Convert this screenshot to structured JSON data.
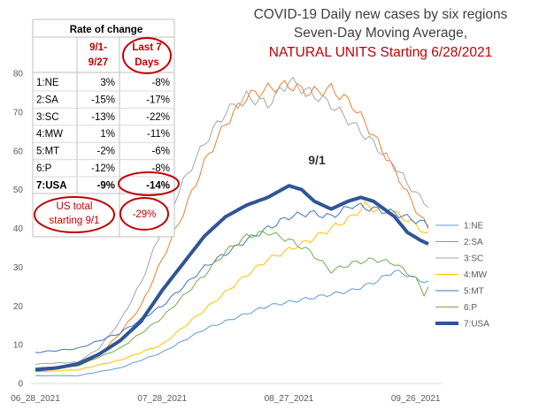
{
  "chart_data": {
    "type": "line",
    "title_lines": [
      "COVID-19 Daily new cases by six regions",
      "Seven-Day Moving Average,",
      "NATURAL UNITS Starting 6/28/2021"
    ],
    "title_colors": [
      "#404040",
      "#404040",
      "#c00000"
    ],
    "x_tick_labels": [
      "06_28_2021",
      "07_28_2021",
      "08_27_2021",
      "09_26_2021"
    ],
    "x_tick_days": [
      0,
      30,
      60,
      90
    ],
    "x_days_total": 93,
    "ylim": [
      0,
      80
    ],
    "y_ticks": [
      0,
      10,
      20,
      30,
      40,
      50,
      60,
      70,
      80
    ],
    "grid": false,
    "legend_position": "right",
    "annotation": "9/1",
    "series": [
      {
        "name": "1:NE",
        "color": "#5b9bd5",
        "width": 1,
        "anchors": [
          [
            0,
            2
          ],
          [
            10,
            2
          ],
          [
            20,
            4
          ],
          [
            30,
            8
          ],
          [
            40,
            14
          ],
          [
            50,
            18
          ],
          [
            55,
            20
          ],
          [
            65,
            22
          ],
          [
            75,
            24
          ],
          [
            80,
            26
          ],
          [
            85,
            29
          ],
          [
            88,
            28
          ],
          [
            90,
            27
          ],
          [
            93,
            26
          ]
        ]
      },
      {
        "name": "2:SA",
        "color": "#ed7d31",
        "width": 1,
        "anchors": [
          [
            0,
            4
          ],
          [
            10,
            4.5
          ],
          [
            15,
            7
          ],
          [
            20,
            13
          ],
          [
            25,
            20
          ],
          [
            30,
            32
          ],
          [
            35,
            44
          ],
          [
            40,
            57
          ],
          [
            45,
            67
          ],
          [
            50,
            74
          ],
          [
            55,
            76
          ],
          [
            60,
            77
          ],
          [
            65,
            75
          ],
          [
            70,
            76
          ],
          [
            75,
            72
          ],
          [
            80,
            64
          ],
          [
            85,
            55
          ],
          [
            90,
            45
          ],
          [
            93,
            40
          ]
        ]
      },
      {
        "name": "3:SC",
        "color": "#a5a5a5",
        "width": 1,
        "anchors": [
          [
            0,
            5
          ],
          [
            10,
            5.5
          ],
          [
            15,
            9
          ],
          [
            20,
            16
          ],
          [
            25,
            26
          ],
          [
            30,
            40
          ],
          [
            35,
            52
          ],
          [
            40,
            62
          ],
          [
            45,
            70
          ],
          [
            50,
            74
          ],
          [
            55,
            72
          ],
          [
            60,
            78
          ],
          [
            65,
            75
          ],
          [
            70,
            72
          ],
          [
            75,
            67
          ],
          [
            80,
            62
          ],
          [
            85,
            56
          ],
          [
            90,
            49
          ],
          [
            93,
            46
          ]
        ]
      },
      {
        "name": "4:MW",
        "color": "#ffc000",
        "width": 1,
        "anchors": [
          [
            0,
            3
          ],
          [
            10,
            3.5
          ],
          [
            20,
            6
          ],
          [
            30,
            10
          ],
          [
            40,
            19
          ],
          [
            50,
            28
          ],
          [
            55,
            32
          ],
          [
            65,
            37
          ],
          [
            75,
            43
          ],
          [
            78,
            46
          ],
          [
            80,
            45
          ],
          [
            85,
            44
          ],
          [
            90,
            41
          ],
          [
            93,
            38
          ]
        ]
      },
      {
        "name": "5:MT",
        "color": "#4472c4",
        "width": 1,
        "anchors": [
          [
            0,
            8
          ],
          [
            10,
            9
          ],
          [
            20,
            13
          ],
          [
            30,
            20
          ],
          [
            40,
            30
          ],
          [
            50,
            37
          ],
          [
            55,
            40
          ],
          [
            60,
            43
          ],
          [
            65,
            44
          ],
          [
            70,
            43
          ],
          [
            75,
            46
          ],
          [
            80,
            45
          ],
          [
            85,
            44
          ],
          [
            90,
            42
          ],
          [
            93,
            41
          ]
        ]
      },
      {
        "name": "6:P",
        "color": "#70ad47",
        "width": 1,
        "anchors": [
          [
            0,
            4
          ],
          [
            10,
            4.5
          ],
          [
            20,
            9
          ],
          [
            30,
            17
          ],
          [
            40,
            28
          ],
          [
            45,
            34
          ],
          [
            50,
            38
          ],
          [
            55,
            39
          ],
          [
            60,
            37
          ],
          [
            65,
            34
          ],
          [
            70,
            29
          ],
          [
            75,
            31
          ],
          [
            80,
            32
          ],
          [
            85,
            31
          ],
          [
            90,
            27
          ],
          [
            92,
            23
          ],
          [
            93,
            25
          ]
        ]
      },
      {
        "name": "7:USA",
        "color": "#2f5597",
        "width": 4,
        "anchors": [
          [
            0,
            3.5
          ],
          [
            5,
            4
          ],
          [
            10,
            5
          ],
          [
            15,
            7.5
          ],
          [
            20,
            11
          ],
          [
            25,
            16
          ],
          [
            30,
            24
          ],
          [
            35,
            31
          ],
          [
            40,
            38
          ],
          [
            45,
            43
          ],
          [
            50,
            46
          ],
          [
            55,
            48
          ],
          [
            60,
            51
          ],
          [
            63,
            50
          ],
          [
            66,
            47
          ],
          [
            70,
            45
          ],
          [
            74,
            47
          ],
          [
            77,
            48
          ],
          [
            80,
            47
          ],
          [
            85,
            43
          ],
          [
            88,
            39
          ],
          [
            91,
            37
          ],
          [
            93,
            36
          ]
        ]
      }
    ],
    "rate_table": {
      "title": "Rate of change",
      "col1_header": "9/1-9/27",
      "col2_header": "Last 7 Days",
      "rows": [
        {
          "region": "1:NE",
          "v1": "3%",
          "v2": "-8%"
        },
        {
          "region": "2:SA",
          "v1": "-15%",
          "v2": "-17%"
        },
        {
          "region": "3:SC",
          "v1": "-13%",
          "v2": "-22%"
        },
        {
          "region": "4:MW",
          "v1": "1%",
          "v2": "-11%"
        },
        {
          "region": "5:MT",
          "v1": "-2%",
          "v2": "-6%"
        },
        {
          "region": "6:P",
          "v1": "-12%",
          "v2": "-8%"
        },
        {
          "region": "7:USA",
          "v1": "-9%",
          "v2": "-14%"
        }
      ],
      "footer_label": "US total starting 9/1",
      "footer_value": "-29%"
    }
  }
}
